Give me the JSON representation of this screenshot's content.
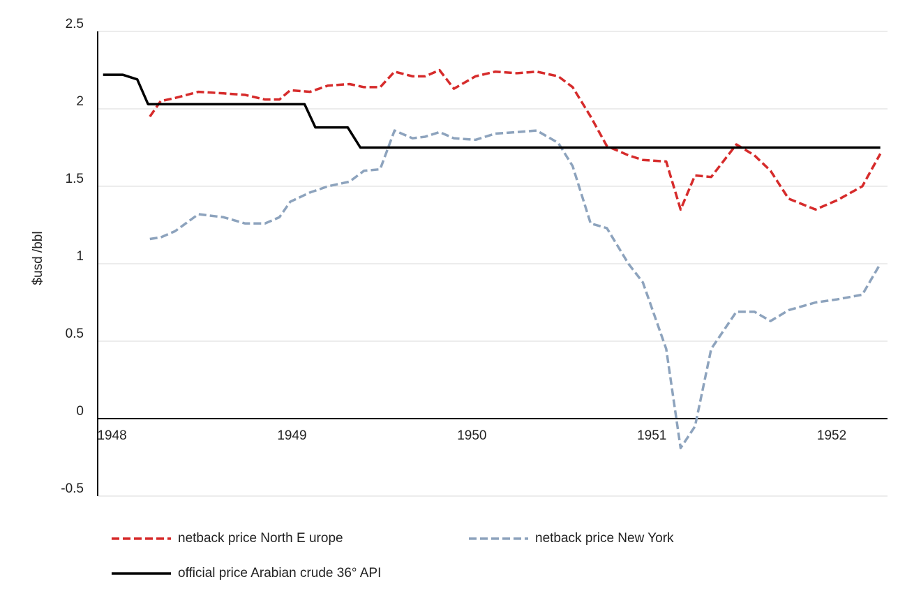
{
  "chart_data": {
    "type": "line",
    "y_label": "$usd /bbl",
    "xlim": [
      1947.92,
      1952.31
    ],
    "xticks": [
      1948,
      1949,
      1950,
      1951,
      1952
    ],
    "ylim": [
      -0.5,
      2.5
    ],
    "yticks": [
      -0.5,
      0,
      0.5,
      1,
      1.5,
      2,
      2.5
    ],
    "grid": true,
    "legend": "bottom",
    "series": [
      {
        "name": "netback price North E urope",
        "color": "#d62b2b",
        "dash": true,
        "x": [
          1948.21,
          1948.27,
          1948.35,
          1948.48,
          1948.62,
          1948.74,
          1948.85,
          1948.93,
          1948.99,
          1949.1,
          1949.2,
          1949.32,
          1949.4,
          1949.49,
          1949.57,
          1949.67,
          1949.74,
          1949.82,
          1949.9,
          1950.02,
          1950.13,
          1950.25,
          1950.36,
          1950.48,
          1950.56,
          1950.66,
          1950.75,
          1950.87,
          1950.95,
          1951.08,
          1951.16,
          1951.24,
          1951.33,
          1951.47,
          1951.57,
          1951.66,
          1951.76,
          1951.91,
          1952.03,
          1952.17,
          1952.27
        ],
        "values": [
          1.95,
          2.05,
          2.07,
          2.11,
          2.1,
          2.09,
          2.06,
          2.06,
          2.12,
          2.11,
          2.15,
          2.16,
          2.14,
          2.14,
          2.24,
          2.21,
          2.21,
          2.25,
          2.13,
          2.21,
          2.24,
          2.23,
          2.24,
          2.21,
          2.14,
          1.95,
          1.76,
          1.7,
          1.67,
          1.66,
          1.35,
          1.57,
          1.56,
          1.77,
          1.7,
          1.6,
          1.42,
          1.35,
          1.41,
          1.5,
          1.71
        ]
      },
      {
        "name": "netback price New York",
        "color": "#8da3bd",
        "dash": true,
        "x": [
          1948.21,
          1948.27,
          1948.35,
          1948.48,
          1948.62,
          1948.74,
          1948.85,
          1948.93,
          1948.99,
          1949.1,
          1949.2,
          1949.32,
          1949.4,
          1949.49,
          1949.57,
          1949.67,
          1949.74,
          1949.82,
          1949.9,
          1950.02,
          1950.13,
          1950.25,
          1950.36,
          1950.48,
          1950.56,
          1950.66,
          1950.75,
          1950.87,
          1950.95,
          1951.08,
          1951.16,
          1951.24,
          1951.33,
          1951.47,
          1951.57,
          1951.66,
          1951.76,
          1951.91,
          1952.03,
          1952.17,
          1952.27
        ],
        "values": [
          1.16,
          1.17,
          1.21,
          1.32,
          1.3,
          1.26,
          1.26,
          1.3,
          1.4,
          1.46,
          1.5,
          1.53,
          1.6,
          1.61,
          1.86,
          1.81,
          1.82,
          1.85,
          1.81,
          1.8,
          1.84,
          1.85,
          1.86,
          1.78,
          1.63,
          1.26,
          1.23,
          1.0,
          0.88,
          0.45,
          -0.19,
          -0.05,
          0.45,
          0.69,
          0.69,
          0.63,
          0.7,
          0.75,
          0.77,
          0.8,
          1.0
        ]
      },
      {
        "name": "official price Arabian crude 36° API",
        "color": "#000000",
        "dash": false,
        "x": [
          1947.95,
          1948.06,
          1948.14,
          1948.2,
          1949.07,
          1949.13,
          1949.31,
          1949.38,
          1952.27
        ],
        "values": [
          2.22,
          2.22,
          2.19,
          2.03,
          2.03,
          1.88,
          1.88,
          1.75,
          1.75
        ]
      }
    ]
  }
}
